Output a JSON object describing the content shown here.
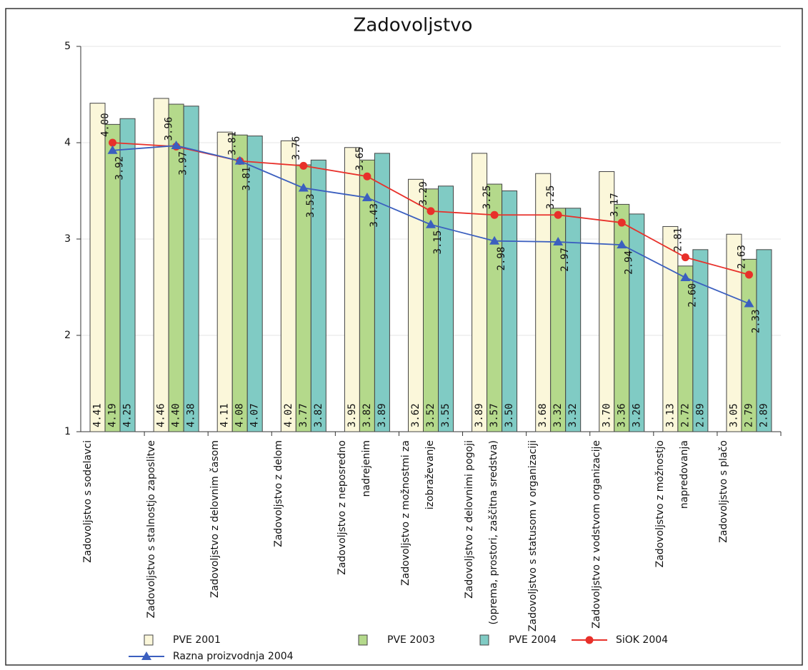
{
  "chart_data": {
    "type": "bar-line",
    "title": "Zadovoljstvo",
    "categories": [
      "Zadovoljstvo s sodelavci",
      "Zadovoljstvo s stalnostjo zaposlitve",
      "Zadovoljstvo z delovnim časom",
      "Zadovoljstvo z delom",
      "Zadovoljstvo z neposredno nadrejenim",
      "Zadovoljstvo z možnostmi za izobraževanje",
      "Zadovoljstvo z delovnimi pogoji (oprema, prostori, zaščitna sredstva)",
      "Zadovoljstvo s statusom v organizaciji",
      "Zadovoljstvo z vodstvom organizacije",
      "Zadovoljstvo z možnostjo napredovanja",
      "Zadovoljstvo s plačo"
    ],
    "series": [
      {
        "name": "PVE 2001",
        "kind": "bar",
        "color": "#fbf7da",
        "values": [
          4.41,
          4.46,
          4.11,
          4.02,
          3.95,
          3.62,
          3.89,
          3.68,
          3.7,
          3.13,
          3.05
        ],
        "value_labels": [
          "4.41",
          "4.46",
          "4.11",
          "4.02",
          "3.95",
          "3.62",
          "3.89",
          "3.68",
          "3.70",
          "3.13",
          "3.05"
        ]
      },
      {
        "name": "PVE 2003",
        "kind": "bar",
        "color": "#b4d98b",
        "values": [
          4.19,
          4.4,
          4.08,
          3.77,
          3.82,
          3.52,
          3.57,
          3.32,
          3.36,
          2.72,
          2.79
        ],
        "value_labels": [
          "4.19",
          "4.40",
          "4.08",
          "3.77",
          "3.82",
          "3.52",
          "3.57",
          "3.32",
          "3.36",
          "2.72",
          "2.79"
        ]
      },
      {
        "name": "PVE 2004",
        "kind": "bar",
        "color": "#80cbc4",
        "values": [
          4.25,
          4.38,
          4.07,
          3.82,
          3.89,
          3.55,
          3.5,
          3.32,
          3.26,
          2.89,
          2.89
        ],
        "value_labels": [
          "4.25",
          "4.38",
          "4.07",
          "3.82",
          "3.89",
          "3.55",
          "3.50",
          "3.32",
          "3.26",
          "2.89",
          "2.89"
        ]
      },
      {
        "name": "SiOK 2004",
        "kind": "line",
        "marker": "circle",
        "color": "#e8302a",
        "values": [
          4.0,
          3.96,
          3.81,
          3.76,
          3.65,
          3.29,
          3.25,
          3.25,
          3.17,
          2.81,
          2.63
        ],
        "value_labels": [
          "4.00",
          "3.96",
          "3.81",
          "3.76",
          "3.65",
          "3.29",
          "3.25",
          "3.25",
          "3.17",
          "2.81",
          "2.63"
        ]
      },
      {
        "name": "Razna proizvodnja 2004",
        "kind": "line",
        "marker": "triangle",
        "color": "#3b5fbf",
        "values": [
          3.92,
          3.97,
          3.81,
          3.53,
          3.43,
          3.15,
          2.98,
          2.97,
          2.94,
          2.6,
          2.33
        ],
        "value_labels": [
          "3.92",
          "3.97",
          "3.81",
          "3.53",
          "3.43",
          "3.15",
          "2.98",
          "2.97",
          "2.94",
          "2.60",
          "2.33"
        ]
      }
    ],
    "ylim": [
      1,
      5
    ],
    "yticks": [
      1,
      2,
      3,
      4,
      5
    ],
    "grid": true
  }
}
